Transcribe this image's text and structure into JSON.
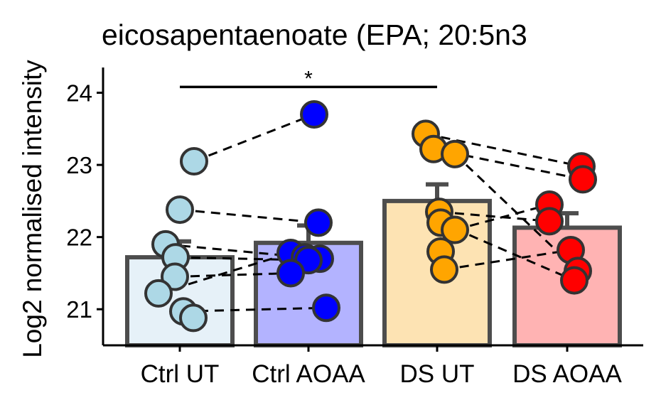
{
  "chart_data": {
    "type": "bar",
    "title": "eicosapentaenoate (EPA; 20:5n3",
    "xlabel": "",
    "ylabel": "Log2 normalised intensity",
    "ylim": [
      20.5,
      24.35
    ],
    "yticks": [
      21,
      22,
      23,
      24
    ],
    "grid": false,
    "legend": "none",
    "categories": [
      "Ctrl UT",
      "Ctrl AOAA",
      "DS UT",
      "DS AOAA"
    ],
    "means": [
      21.72,
      21.92,
      22.5,
      22.13
    ],
    "errors": [
      0.22,
      0.24,
      0.23,
      0.2
    ],
    "bar_fills": [
      "#e6f1f8",
      "#b3b3ff",
      "#fde3b3",
      "#ffb3b3"
    ],
    "point_fills": [
      "#add8e6",
      "#0000ff",
      "#ffa500",
      "#ff0000"
    ],
    "points": [
      [
        23.05,
        22.38,
        21.9,
        21.72,
        21.45,
        21.22,
        20.97,
        20.88
      ],
      [
        23.7,
        22.2,
        21.78,
        21.72,
        21.7,
        21.68,
        21.5,
        21.02
      ],
      [
        23.43,
        23.22,
        23.15,
        22.35,
        22.2,
        22.1,
        21.8,
        21.55
      ],
      [
        22.98,
        22.8,
        22.45,
        22.22,
        21.82,
        21.53,
        21.4
      ]
    ],
    "pairs": [
      [
        23.05,
        23.7
      ],
      [
        22.38,
        22.2
      ],
      [
        21.9,
        21.72
      ],
      [
        21.72,
        21.68
      ],
      [
        21.45,
        21.5
      ],
      [
        21.22,
        21.78
      ],
      [
        20.97,
        21.02
      ],
      [
        23.43,
        22.98
      ],
      [
        23.22,
        22.8
      ],
      [
        23.15,
        21.53
      ],
      [
        22.35,
        22.22
      ],
      [
        22.2,
        21.4
      ],
      [
        22.1,
        22.45
      ],
      [
        21.55,
        21.82
      ]
    ],
    "significance": {
      "from": "Ctrl UT",
      "to": "DS UT",
      "label": "*",
      "y": 24.08
    }
  }
}
